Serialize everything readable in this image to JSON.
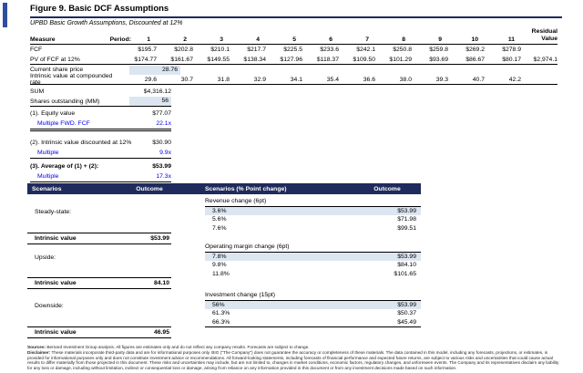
{
  "title": "Figure 9. Basic DCF Assumptions",
  "subtitle": "UPBD Basic Growth Assumptions, Discounted at 12%",
  "colors": {
    "navy_header": "#1f2b5c",
    "accent_blue": "#2e4ea1",
    "highlight_blue": "#dce6f1",
    "link_blue": "#0000f0"
  },
  "dcf_table": {
    "measure_header": "Measure",
    "period_header": "Period:",
    "periods": [
      "1",
      "2",
      "3",
      "4",
      "5",
      "6",
      "7",
      "8",
      "9",
      "10",
      "11"
    ],
    "residual_header": "Residual\nValue",
    "rows": [
      {
        "label": "FCF",
        "values": [
          "$195.7",
          "$202.8",
          "$210.1",
          "$217.7",
          "$225.5",
          "$233.6",
          "$242.1",
          "$250.8",
          "$259.8",
          "$269.2",
          "$278.9"
        ],
        "residual": "",
        "highlight": false
      },
      {
        "label": "PV of FCF at 12%",
        "values": [
          "$174.77",
          "$161.67",
          "$149.55",
          "$138.34",
          "$127.96",
          "$118.37",
          "$109.50",
          "$101.29",
          "$93.69",
          "$86.67",
          "$80.17"
        ],
        "residual": "$2,974.1",
        "highlight": false
      },
      {
        "label": "Current share price",
        "values": [
          "28.76"
        ],
        "residual": "",
        "highlight": true
      },
      {
        "label": "Intrinsic value at compounded rate",
        "values": [
          "29.6",
          "30.7",
          "31.8",
          "32.9",
          "34.1",
          "35.4",
          "36.6",
          "38.0",
          "39.3",
          "40.7",
          "42.2"
        ],
        "residual": "",
        "highlight": false
      }
    ]
  },
  "summary": {
    "sum_label": "SUM",
    "sum_value": "$4,316.12",
    "shares_label": "Shares outstanding (MM)",
    "shares_value": "56",
    "blocks": [
      {
        "label": "(1). Equity value",
        "value": "$77.07",
        "sub_label": "Multiple FWD. FCF",
        "sub_value": "22.1x"
      },
      {
        "label": "(2). Intrinsic value discounted at 12%",
        "value": "$30.90",
        "sub_label": "Multiple",
        "sub_value": "9.9x"
      },
      {
        "label": "(3). Average of (1) + (2):",
        "value": "$53.99",
        "sub_label": "Multiple",
        "sub_value": "17.3x"
      }
    ]
  },
  "scenarios": {
    "header": {
      "scenarios_label": "Scenarios",
      "outcome_left_label": "Outcome",
      "point_change_label": "Scenarios (% Point change)",
      "outcome_right_label": "Outcome"
    },
    "groups": [
      {
        "name": "Steady-state:",
        "intrinsic_label": "Intrinsic value",
        "intrinsic_value": "$53.99",
        "change_title": "Revenue change (6pt)",
        "rows": [
          {
            "pct": "3.6%",
            "outcome": "$53.99",
            "highlight": true
          },
          {
            "pct": "5.6%",
            "outcome": "$71.98",
            "highlight": false
          },
          {
            "pct": "7.6%",
            "outcome": "$99.51",
            "highlight": false
          }
        ]
      },
      {
        "name": "Upside:",
        "intrinsic_label": "Intrinsic value",
        "intrinsic_value": "84.10",
        "change_title": "Operating margin change (6pt)",
        "rows": [
          {
            "pct": "7.8%",
            "outcome": "$53.99",
            "highlight": true
          },
          {
            "pct": "9.8%",
            "outcome": "$84.10",
            "highlight": false
          },
          {
            "pct": "11.8%",
            "outcome": "$101.65",
            "highlight": false
          }
        ]
      },
      {
        "name": "Downside:",
        "intrinsic_label": "Intrinsic value",
        "intrinsic_value": "46.95",
        "change_title": "Investment change (15pt)",
        "rows": [
          {
            "pct": "56%",
            "outcome": "$53.99",
            "highlight": true
          },
          {
            "pct": "61.3%",
            "outcome": "$50.37",
            "highlight": false
          },
          {
            "pct": "66.3%",
            "outcome": "$45.49",
            "highlight": false
          }
        ]
      }
    ]
  },
  "footer": {
    "sources_label": "Sources:",
    "sources_text": "Bernard Investment Group analysis. All figures are estimates only and do not reflect any company results. Forecasts are subject to change.",
    "disclaimer_label": "Disclaimer:",
    "disclaimer_text": "These materials incorporate third-party data and are for informational purposes only. BIG (\"The Company\") does not guarantee the accuracy or completeness of these materials. The data contained in this model, including any forecasts, projections, or estimates, is provided for informational purposes only and does not constitute investment advice or recommendations. All forward-looking statements, including forecasts of financial performance and expected future returns, are subject to various risks and uncertainties that could cause actual results to differ materially from those projected in this document. These risks and uncertainties may include, but are not limited to, changes in market conditions, economic factors, regulatory changes, and unforeseen events. The Company and its representatives disclaim any liability for any loss or damage, including without limitation, indirect or consequential loss or damage, arising from reliance on any information provided in this document or from any investment decisions made based on such information."
  }
}
